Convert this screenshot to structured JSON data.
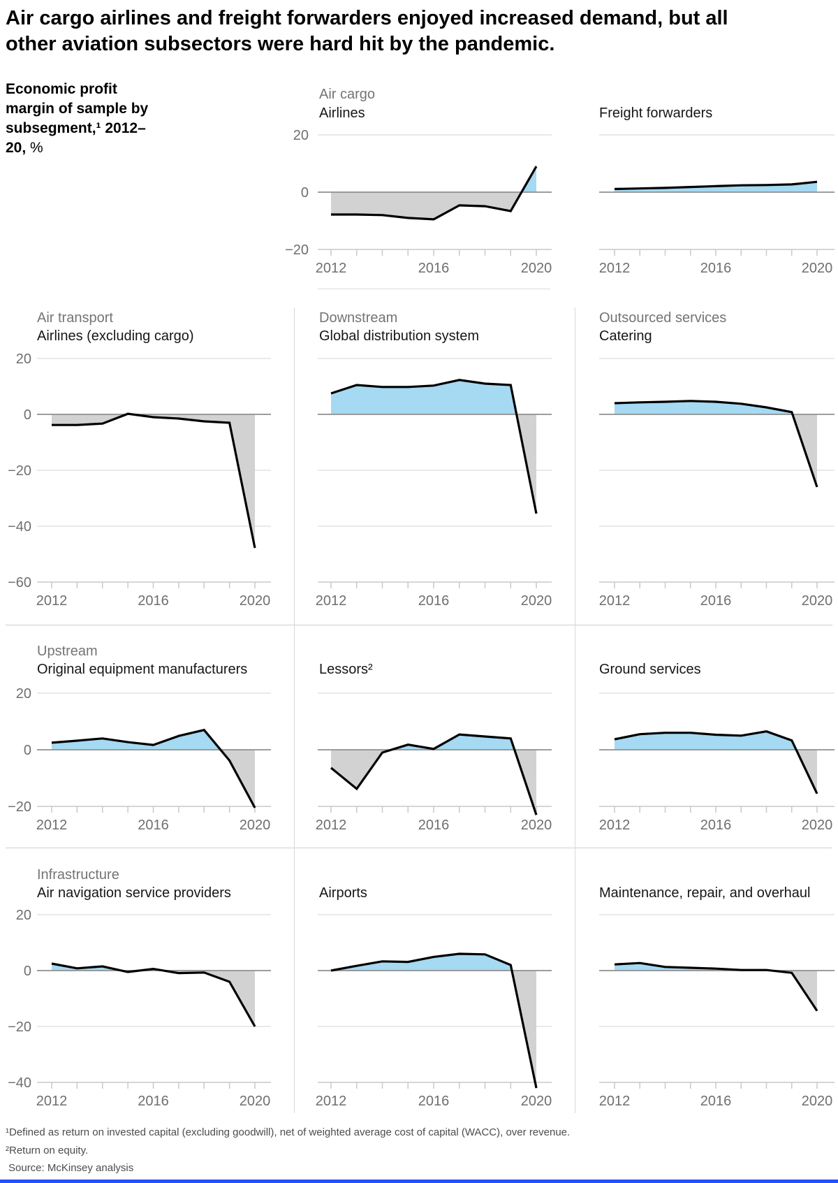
{
  "page": {
    "title": "Air cargo airlines and freight forwarders enjoyed increased demand, but all other aviation subsectors were hard hit by the pandemic.",
    "descriptor": "Economic profit margin of sample by subsegment,¹ 2012–20,",
    "descriptor_unit": "%",
    "footnote1": "¹Defined as return on invested capital (excluding goodwill), net of weighted average cost of capital (WACC), over revenue.",
    "footnote2": "²Return on equity.",
    "source": "Source: McKinsey analysis",
    "colors": {
      "positive_fill": "#a6d9f2",
      "negative_fill": "#d2d2d2",
      "line": "#000000",
      "zero_line": "#8f8f8f",
      "grid_line": "#dcdcdc",
      "axis_line": "#c9c9c9",
      "label": "#6f6f6f",
      "accent_bar": "#2251ff"
    }
  },
  "axis": {
    "x_years": [
      2012,
      2013,
      2014,
      2015,
      2016,
      2017,
      2018,
      2019,
      2020
    ],
    "x_tick_label_years": [
      2012,
      2016,
      2020
    ],
    "x_tick_labels": [
      "2012",
      "2016",
      "2020"
    ]
  },
  "chart_data": [
    {
      "id": "air-cargo-airlines",
      "type": "area",
      "group": "Air cargo",
      "title": "Airlines",
      "row": "r1",
      "col": "B",
      "y_gridlines": [
        20,
        0,
        -20
      ],
      "y_labels": [
        "20",
        "0",
        "−20"
      ],
      "values": [
        -7.8,
        -7.8,
        -8,
        -9,
        -9.5,
        -4.6,
        -4.9,
        -6.6,
        9
      ]
    },
    {
      "id": "freight-forwarders",
      "type": "area",
      "group": "",
      "title": "Freight forwarders",
      "row": "r1",
      "col": "C",
      "y_gridlines": [
        20,
        0,
        -20
      ],
      "y_labels": [],
      "values": [
        1.1,
        1.3,
        1.5,
        1.8,
        2.1,
        2.4,
        2.5,
        2.7,
        3.6
      ]
    },
    {
      "id": "airlines-excluding-cargo",
      "type": "area",
      "group": "Air transport",
      "title": "Airlines (excluding cargo)",
      "row": "r2",
      "col": "A",
      "y_gridlines": [
        20,
        0,
        -20,
        -40,
        -60
      ],
      "y_labels": [
        "20",
        "0",
        "−20",
        "−40",
        "−60"
      ],
      "values": [
        -3.8,
        -3.8,
        -3.3,
        0.2,
        -1,
        -1.5,
        -2.5,
        -3,
        -47.8
      ]
    },
    {
      "id": "global-distribution-system",
      "type": "area",
      "group": "Downstream",
      "title": "Global distribution system",
      "row": "r2",
      "col": "B",
      "y_gridlines": [
        20,
        0,
        -20,
        -40,
        -60
      ],
      "y_labels": [],
      "values": [
        7.5,
        10.5,
        9.8,
        9.8,
        10.3,
        12.3,
        11,
        10.5,
        -35.5
      ]
    },
    {
      "id": "catering",
      "type": "area",
      "group": "Outsourced services",
      "title": "Catering",
      "row": "r2",
      "col": "C",
      "y_gridlines": [
        20,
        0,
        -20,
        -40,
        -60
      ],
      "y_labels": [],
      "values": [
        4,
        4.3,
        4.5,
        4.8,
        4.5,
        3.8,
        2.5,
        0.8,
        -26
      ]
    },
    {
      "id": "original-equipment-manufacturers",
      "type": "area",
      "group": "Upstream",
      "title": "Original equipment manufacturers",
      "row": "r3",
      "col": "A",
      "y_gridlines": [
        20,
        0,
        -20
      ],
      "y_labels": [
        "20",
        "0",
        "−20"
      ],
      "values": [
        2.5,
        3.2,
        4,
        2.7,
        1.7,
        4.9,
        7,
        -3.8,
        -20.5
      ]
    },
    {
      "id": "lessors",
      "type": "area",
      "group": "",
      "title": "Lessors²",
      "row": "r3",
      "col": "B",
      "y_gridlines": [
        20,
        0,
        -20
      ],
      "y_labels": [],
      "values": [
        -6.4,
        -13.8,
        -1,
        1.8,
        0.3,
        5.4,
        4.7,
        4,
        -23
      ]
    },
    {
      "id": "ground-services",
      "type": "area",
      "group": "",
      "title": "Ground services",
      "row": "r3",
      "col": "C",
      "y_gridlines": [
        20,
        0,
        -20
      ],
      "y_labels": [],
      "values": [
        3.7,
        5.5,
        6,
        6,
        5.3,
        5,
        6.5,
        3.3,
        -15.5
      ]
    },
    {
      "id": "air-navigation-service-providers",
      "type": "area",
      "group": "Infrastructure",
      "title": "Air navigation service providers",
      "row": "r4",
      "col": "A",
      "y_gridlines": [
        20,
        0,
        -20,
        -40
      ],
      "y_labels": [
        "20",
        "0",
        "−20",
        "−40"
      ],
      "values": [
        2.5,
        0.8,
        1.5,
        -0.5,
        0.6,
        -0.9,
        -0.7,
        -4,
        -20
      ]
    },
    {
      "id": "airports",
      "type": "area",
      "group": "",
      "title": "Airports",
      "row": "r4",
      "col": "B",
      "y_gridlines": [
        20,
        0,
        -20,
        -40
      ],
      "y_labels": [],
      "values": [
        0,
        1.7,
        3.3,
        3.1,
        4.9,
        6,
        5.8,
        2,
        -42
      ]
    },
    {
      "id": "maintenance-repair-overhaul",
      "type": "area",
      "group": "",
      "title": "Maintenance, repair, and overhaul",
      "row": "r4",
      "col": "C",
      "y_gridlines": [
        20,
        0,
        -20,
        -40
      ],
      "y_labels": [],
      "values": [
        2.2,
        2.7,
        1.3,
        1,
        0.7,
        0.2,
        0.2,
        -0.8,
        -14.4
      ]
    }
  ]
}
